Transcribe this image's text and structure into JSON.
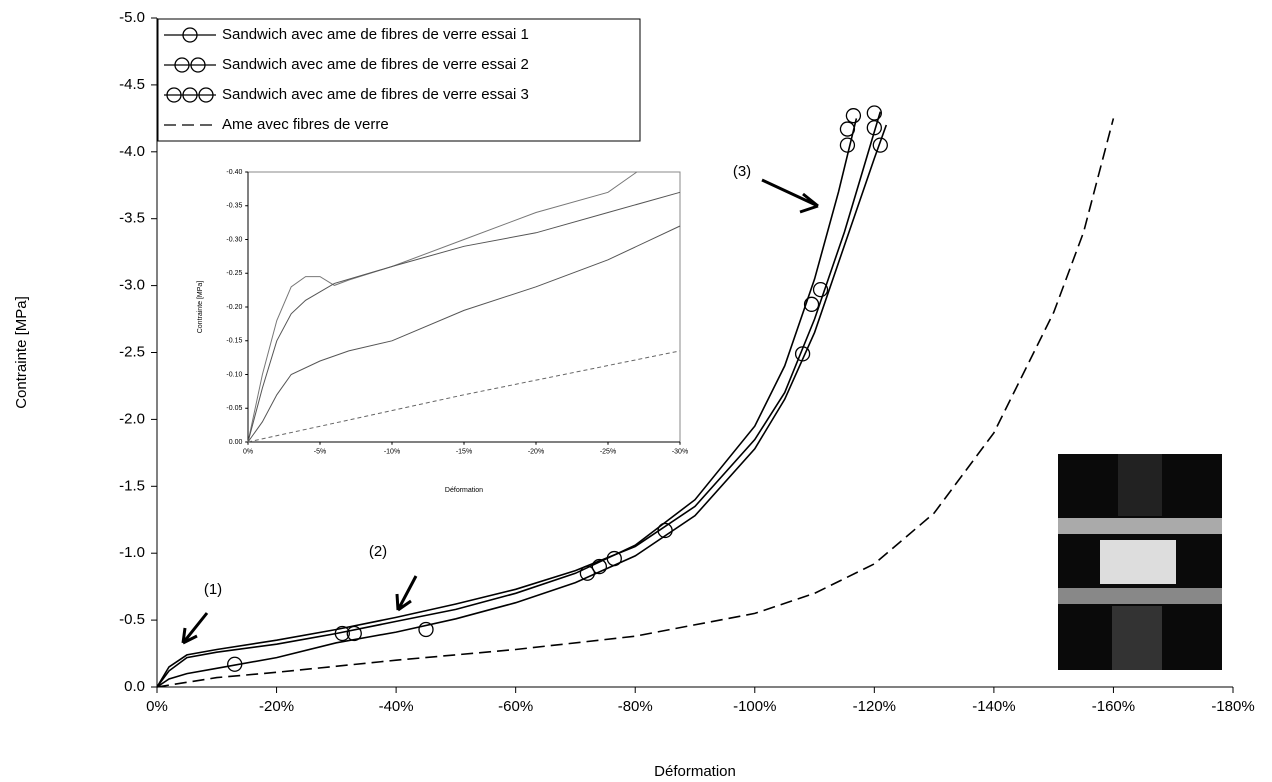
{
  "chart_data": [
    {
      "type": "line",
      "xlabel": "Déformation",
      "ylabel": "Contrainte [MPa]",
      "xlim": [
        0,
        -180
      ],
      "ylim": [
        0,
        -5
      ],
      "xticks": [
        {
          "value": 0,
          "label": "0%"
        },
        {
          "value": -20,
          "label": "-20%"
        },
        {
          "value": -40,
          "label": "-40%"
        },
        {
          "value": -60,
          "label": "-60%"
        },
        {
          "value": -80,
          "label": "-80%"
        },
        {
          "value": -100,
          "label": "-100%"
        },
        {
          "value": -120,
          "label": "-120%"
        },
        {
          "value": -140,
          "label": "-140%"
        },
        {
          "value": -160,
          "label": "-160%"
        },
        {
          "value": -180,
          "label": "-180%"
        }
      ],
      "yticks": [
        {
          "value": 0,
          "label": "0.0"
        },
        -0.5,
        {
          "value": -1,
          "label": "-1.0"
        },
        -1.5,
        {
          "value": -2,
          "label": "-2.0"
        },
        -2.5,
        {
          "value": -3,
          "label": "-3.0"
        },
        -3.5,
        {
          "value": -4,
          "label": "-4.0"
        },
        -4.5,
        {
          "value": -5,
          "label": "-5.0"
        }
      ],
      "legend": "top-left",
      "annotations": [
        "(1)",
        "(2)",
        "(3)"
      ],
      "series": [
        {
          "name": "Sandwich avec  ame de  fibres de verre essai 1",
          "color": "#000000",
          "dash": false,
          "x": [
            0,
            -2,
            -5,
            -10,
            -20,
            -30,
            -40,
            -50,
            -60,
            -70,
            -80,
            -90,
            -100,
            -105,
            -110,
            -115,
            -120,
            -122
          ],
          "values": [
            0,
            -0.06,
            -0.1,
            -0.14,
            -0.22,
            -0.33,
            -0.41,
            -0.51,
            -0.63,
            -0.78,
            -0.98,
            -1.28,
            -1.78,
            -2.15,
            -2.65,
            -3.3,
            -3.95,
            -4.2
          ],
          "markers_x": [
            -13,
            -45,
            -85,
            -108,
            -121
          ],
          "markers_values": [
            -0.17,
            -0.43,
            -1.17,
            -2.49,
            -4.05
          ]
        },
        {
          "name": "Sandwich avec  ame de  fibres de verre essai 2",
          "color": "#000000",
          "dash": false,
          "x": [
            0,
            -2,
            -5,
            -10,
            -20,
            -30,
            -40,
            -50,
            -60,
            -70,
            -80,
            -90,
            -100,
            -105,
            -110,
            -114,
            -117
          ],
          "values": [
            0,
            -0.12,
            -0.22,
            -0.26,
            -0.32,
            -0.4,
            -0.49,
            -0.58,
            -0.7,
            -0.85,
            -1.06,
            -1.4,
            -1.95,
            -2.4,
            -3.05,
            -3.7,
            -4.25
          ],
          "markers_x": [
            -31,
            -72,
            -109.5,
            -115.5,
            -115.5
          ],
          "markers_values": [
            -0.4,
            -0.85,
            -2.86,
            -4.05,
            -4.17
          ]
        },
        {
          "name": "Sandwich avec  ame de  fibres de verre essai 3",
          "color": "#000000",
          "dash": false,
          "x": [
            0,
            -2,
            -5,
            -10,
            -20,
            -30,
            -40,
            -50,
            -60,
            -70,
            -80,
            -90,
            -100,
            -105,
            -110,
            -115,
            -118,
            -121
          ],
          "values": [
            0,
            -0.15,
            -0.24,
            -0.28,
            -0.35,
            -0.43,
            -0.52,
            -0.62,
            -0.73,
            -0.87,
            -1.05,
            -1.35,
            -1.85,
            -2.2,
            -2.75,
            -3.4,
            -3.85,
            -4.3
          ],
          "markers_x": [
            -33,
            -74,
            -76.5,
            -111,
            -116.5,
            -120,
            -120
          ],
          "markers_values": [
            -0.4,
            -0.9,
            -0.96,
            -2.97,
            -4.27,
            -4.29,
            -4.18
          ]
        },
        {
          "name": "Ame avec fibres de verre",
          "color": "#000000",
          "dash": true,
          "x": [
            0,
            -10,
            -20,
            -40,
            -60,
            -80,
            -100,
            -110,
            -120,
            -130,
            -140,
            -150,
            -155,
            -160
          ],
          "values": [
            0,
            -0.07,
            -0.11,
            -0.2,
            -0.28,
            -0.38,
            -0.55,
            -0.7,
            -0.92,
            -1.3,
            -1.9,
            -2.8,
            -3.4,
            -4.25
          ]
        }
      ]
    },
    {
      "type": "line",
      "xlabel": "Déformation",
      "ylabel": "Contrainte [MPa]",
      "xlim": [
        0,
        -30
      ],
      "ylim": [
        0,
        -0.4
      ],
      "xticks": [
        {
          "value": 0,
          "label": "0%"
        },
        {
          "value": -5,
          "label": "-5%"
        },
        {
          "value": -10,
          "label": "-10%"
        },
        {
          "value": -15,
          "label": "-15%"
        },
        {
          "value": -20,
          "label": "-20%"
        },
        {
          "value": -25,
          "label": "-25%"
        },
        {
          "value": -30,
          "label": "-30%"
        }
      ],
      "yticks": [
        {
          "value": 0,
          "label": "0.00"
        },
        -0.05,
        {
          "value": -0.1,
          "label": "-0.10"
        },
        -0.15,
        {
          "value": -0.2,
          "label": "-0.20"
        },
        -0.25,
        {
          "value": -0.3,
          "label": "-0.30"
        },
        -0.35,
        {
          "value": -0.4,
          "label": "-0.40"
        }
      ],
      "series": [
        {
          "color": "#777777",
          "dash": false,
          "x": [
            0,
            -1,
            -2,
            -3,
            -4,
            -5,
            -6,
            -7,
            -10,
            -15,
            -20,
            -25,
            -27
          ],
          "values": [
            0,
            -0.1,
            -0.18,
            -0.23,
            -0.245,
            -0.245,
            -0.232,
            -0.24,
            -0.26,
            -0.3,
            -0.34,
            -0.37,
            -0.4
          ]
        },
        {
          "color": "#555555",
          "dash": false,
          "x": [
            0,
            -1,
            -2,
            -3,
            -4,
            -6,
            -10,
            -15,
            -20,
            -25,
            -30
          ],
          "values": [
            0,
            -0.08,
            -0.15,
            -0.19,
            -0.21,
            -0.235,
            -0.26,
            -0.29,
            -0.31,
            -0.34,
            -0.37
          ]
        },
        {
          "color": "#555555",
          "dash": false,
          "x": [
            0,
            -1,
            -2,
            -3,
            -5,
            -7,
            -10,
            -15,
            -20,
            -25,
            -30
          ],
          "values": [
            0,
            -0.03,
            -0.07,
            -0.1,
            -0.12,
            -0.135,
            -0.15,
            -0.195,
            -0.23,
            -0.27,
            -0.32
          ]
        },
        {
          "color": "#666666",
          "dash": true,
          "x": [
            0,
            -15,
            -30
          ],
          "values": [
            0,
            -0.07,
            -0.135
          ]
        }
      ]
    }
  ]
}
